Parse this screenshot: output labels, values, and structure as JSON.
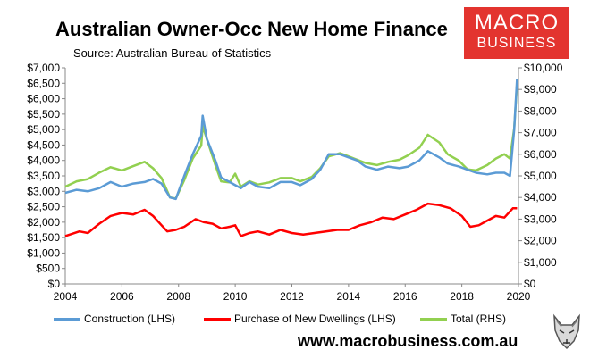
{
  "header": {
    "title": "Australian Owner-Occ New Home Finance",
    "subtitle": "Source: Australian Bureau of Statistics"
  },
  "logo": {
    "line1": "MACRO",
    "line2": "BUSINESS",
    "color": "#e3342f"
  },
  "footer": {
    "url": "www.macrobusiness.com.au"
  },
  "chart_data": {
    "type": "line",
    "title": "Australian Owner-Occ New Home Finance",
    "x_ticks": [
      "2004",
      "2006",
      "2008",
      "2010",
      "2012",
      "2014",
      "2016",
      "2018",
      "2020"
    ],
    "xlim": [
      2004,
      2020
    ],
    "y_left": {
      "lim": [
        0,
        7000
      ],
      "ticks": [
        "$0",
        "$500",
        "$1,000",
        "$1,500",
        "$2,000",
        "$2,500",
        "$3,000",
        "$3,500",
        "$4,000",
        "$4,500",
        "$5,000",
        "$5,500",
        "$6,000",
        "$6,500",
        "$7,000"
      ]
    },
    "y_right": {
      "lim": [
        0,
        10000
      ],
      "ticks": [
        "$0",
        "$1,000",
        "$2,000",
        "$3,000",
        "$4,000",
        "$5,000",
        "$6,000",
        "$7,000",
        "$8,000",
        "$9,000",
        "$10,000"
      ]
    },
    "grid": false,
    "legend": "bottom",
    "series": [
      {
        "name": "Construction (LHS)",
        "axis": "left",
        "color": "#5b9bd5",
        "points": [
          [
            2004.0,
            2950
          ],
          [
            2004.4,
            3050
          ],
          [
            2004.8,
            3000
          ],
          [
            2005.2,
            3100
          ],
          [
            2005.6,
            3300
          ],
          [
            2006.0,
            3150
          ],
          [
            2006.4,
            3250
          ],
          [
            2006.8,
            3300
          ],
          [
            2007.1,
            3400
          ],
          [
            2007.4,
            3250
          ],
          [
            2007.7,
            2800
          ],
          [
            2007.9,
            2750
          ],
          [
            2008.2,
            3500
          ],
          [
            2008.5,
            4200
          ],
          [
            2008.8,
            4800
          ],
          [
            2008.85,
            5450
          ],
          [
            2009.0,
            4700
          ],
          [
            2009.3,
            4000
          ],
          [
            2009.5,
            3450
          ],
          [
            2009.8,
            3300
          ],
          [
            2010.0,
            3200
          ],
          [
            2010.2,
            3100
          ],
          [
            2010.5,
            3300
          ],
          [
            2010.8,
            3150
          ],
          [
            2011.2,
            3100
          ],
          [
            2011.6,
            3300
          ],
          [
            2012.0,
            3300
          ],
          [
            2012.3,
            3200
          ],
          [
            2012.7,
            3400
          ],
          [
            2013.0,
            3700
          ],
          [
            2013.3,
            4200
          ],
          [
            2013.7,
            4200
          ],
          [
            2014.0,
            4100
          ],
          [
            2014.3,
            4000
          ],
          [
            2014.6,
            3800
          ],
          [
            2015.0,
            3700
          ],
          [
            2015.4,
            3800
          ],
          [
            2015.8,
            3750
          ],
          [
            2016.1,
            3800
          ],
          [
            2016.5,
            4000
          ],
          [
            2016.8,
            4300
          ],
          [
            2017.2,
            4100
          ],
          [
            2017.5,
            3900
          ],
          [
            2017.9,
            3800
          ],
          [
            2018.2,
            3700
          ],
          [
            2018.5,
            3600
          ],
          [
            2018.9,
            3550
          ],
          [
            2019.2,
            3600
          ],
          [
            2019.5,
            3600
          ],
          [
            2019.7,
            3500
          ],
          [
            2019.85,
            5000
          ],
          [
            2019.95,
            6650
          ]
        ]
      },
      {
        "name": "Purchase of New Dwellings (LHS)",
        "axis": "left",
        "color": "#ff0000",
        "points": [
          [
            2004.0,
            1550
          ],
          [
            2004.5,
            1700
          ],
          [
            2004.8,
            1650
          ],
          [
            2005.2,
            1950
          ],
          [
            2005.6,
            2200
          ],
          [
            2006.0,
            2300
          ],
          [
            2006.4,
            2250
          ],
          [
            2006.8,
            2400
          ],
          [
            2007.1,
            2200
          ],
          [
            2007.4,
            1900
          ],
          [
            2007.6,
            1700
          ],
          [
            2007.9,
            1750
          ],
          [
            2008.2,
            1850
          ],
          [
            2008.6,
            2100
          ],
          [
            2008.9,
            2000
          ],
          [
            2009.2,
            1950
          ],
          [
            2009.5,
            1800
          ],
          [
            2009.8,
            1850
          ],
          [
            2010.0,
            1900
          ],
          [
            2010.2,
            1550
          ],
          [
            2010.5,
            1650
          ],
          [
            2010.8,
            1700
          ],
          [
            2011.2,
            1600
          ],
          [
            2011.6,
            1750
          ],
          [
            2012.0,
            1650
          ],
          [
            2012.4,
            1600
          ],
          [
            2012.8,
            1650
          ],
          [
            2013.2,
            1700
          ],
          [
            2013.6,
            1750
          ],
          [
            2014.0,
            1750
          ],
          [
            2014.4,
            1900
          ],
          [
            2014.8,
            2000
          ],
          [
            2015.2,
            2150
          ],
          [
            2015.6,
            2100
          ],
          [
            2016.0,
            2250
          ],
          [
            2016.4,
            2400
          ],
          [
            2016.8,
            2600
          ],
          [
            2017.2,
            2550
          ],
          [
            2017.6,
            2450
          ],
          [
            2018.0,
            2200
          ],
          [
            2018.3,
            1850
          ],
          [
            2018.6,
            1900
          ],
          [
            2018.9,
            2050
          ],
          [
            2019.2,
            2200
          ],
          [
            2019.5,
            2150
          ],
          [
            2019.8,
            2450
          ],
          [
            2019.95,
            2450
          ]
        ]
      },
      {
        "name": "Total (RHS)",
        "axis": "right",
        "color": "#92d050",
        "points": [
          [
            2004.0,
            4500
          ],
          [
            2004.4,
            4750
          ],
          [
            2004.8,
            4850
          ],
          [
            2005.2,
            5150
          ],
          [
            2005.6,
            5400
          ],
          [
            2006.0,
            5250
          ],
          [
            2006.4,
            5450
          ],
          [
            2006.8,
            5650
          ],
          [
            2007.1,
            5350
          ],
          [
            2007.4,
            4900
          ],
          [
            2007.7,
            4000
          ],
          [
            2007.9,
            3950
          ],
          [
            2008.2,
            4800
          ],
          [
            2008.5,
            5800
          ],
          [
            2008.8,
            6400
          ],
          [
            2008.85,
            7300
          ],
          [
            2009.0,
            6700
          ],
          [
            2009.3,
            5500
          ],
          [
            2009.5,
            4750
          ],
          [
            2009.8,
            4700
          ],
          [
            2010.0,
            5100
          ],
          [
            2010.2,
            4500
          ],
          [
            2010.5,
            4750
          ],
          [
            2010.8,
            4600
          ],
          [
            2011.2,
            4700
          ],
          [
            2011.6,
            4900
          ],
          [
            2012.0,
            4900
          ],
          [
            2012.3,
            4750
          ],
          [
            2012.7,
            4950
          ],
          [
            2013.0,
            5350
          ],
          [
            2013.3,
            5900
          ],
          [
            2013.7,
            6050
          ],
          [
            2014.0,
            5900
          ],
          [
            2014.3,
            5750
          ],
          [
            2014.6,
            5600
          ],
          [
            2015.0,
            5500
          ],
          [
            2015.4,
            5650
          ],
          [
            2015.8,
            5750
          ],
          [
            2016.1,
            5950
          ],
          [
            2016.5,
            6300
          ],
          [
            2016.8,
            6900
          ],
          [
            2017.2,
            6550
          ],
          [
            2017.5,
            6000
          ],
          [
            2017.9,
            5700
          ],
          [
            2018.2,
            5300
          ],
          [
            2018.5,
            5250
          ],
          [
            2018.9,
            5500
          ],
          [
            2019.2,
            5800
          ],
          [
            2019.5,
            6000
          ],
          [
            2019.7,
            5800
          ],
          [
            2019.85,
            7200
          ],
          [
            2019.95,
            9300
          ]
        ]
      }
    ]
  }
}
